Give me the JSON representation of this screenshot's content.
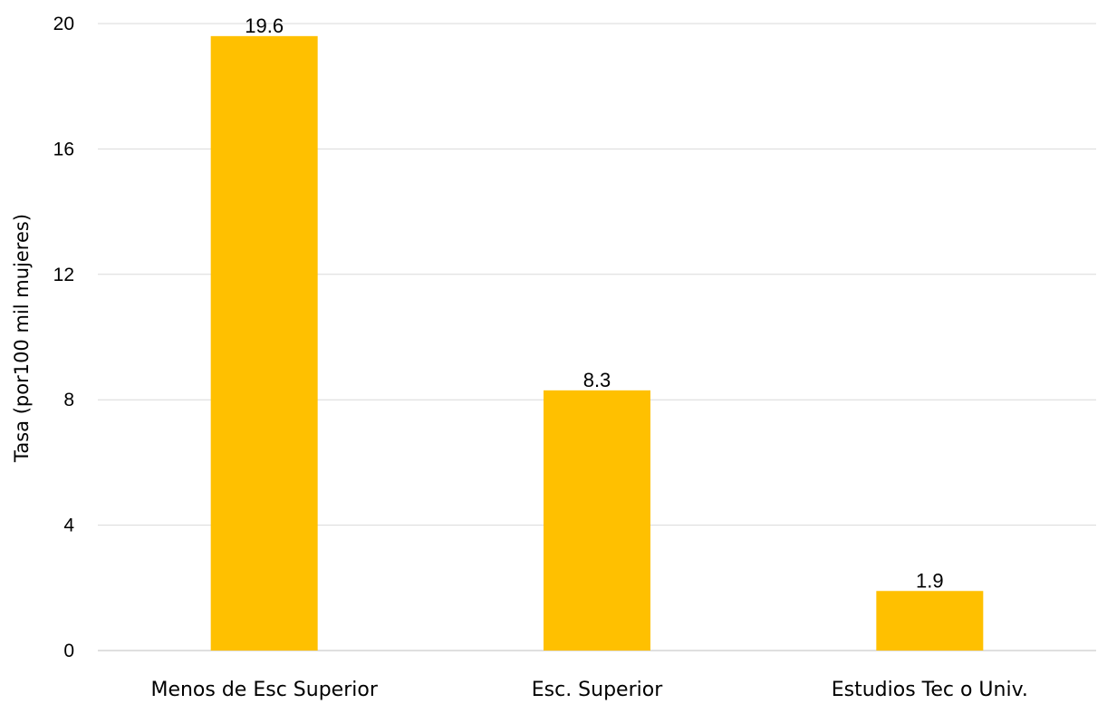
{
  "chart_data": {
    "type": "bar",
    "title": "",
    "xlabel": "",
    "ylabel": "Tasa (por100 mil mujeres)",
    "categories": [
      "Menos de Esc Superior",
      "Esc. Superior",
      "Estudios Tec o Univ."
    ],
    "values": [
      19.6,
      8.3,
      1.9
    ],
    "data_labels": [
      "19.6",
      "8.3",
      "1.9"
    ],
    "ylim": [
      0,
      20
    ],
    "yticks": [
      0,
      4,
      8,
      12,
      16,
      20
    ],
    "ytick_labels": [
      "0",
      "4",
      "8",
      "12",
      "16",
      "20"
    ],
    "grid": true,
    "legend": "none",
    "colors": {
      "bar": "#FFC000",
      "grid": "#D9D9D9",
      "axis": "#BFBFBF"
    }
  }
}
